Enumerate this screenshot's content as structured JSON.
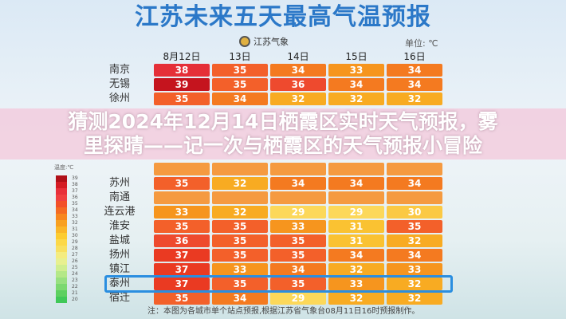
{
  "title": "江苏未来五天最高气温预报",
  "logo_text": "江苏气象",
  "unit": "单位: ℃",
  "columns": [
    "8月12日",
    "13日",
    "14日",
    "15日",
    "16日"
  ],
  "rows": [
    {
      "city": "南京",
      "values": [
        "38",
        "35",
        "34",
        "33",
        "34"
      ]
    },
    {
      "city": "无锡",
      "values": [
        "39",
        "35",
        "36",
        "34",
        "34"
      ]
    },
    {
      "city": "徐州",
      "values": [
        "35",
        "34",
        "32",
        "32",
        "32"
      ]
    },
    {
      "city": "",
      "values": [
        "",
        "",
        "",
        "",
        ""
      ]
    },
    {
      "city": "苏州",
      "values": [
        "35",
        "32",
        "34",
        "34",
        "34"
      ]
    },
    {
      "city": "南通",
      "values": [
        "",
        "",
        "",
        "",
        ""
      ]
    },
    {
      "city": "连云港",
      "values": [
        "33",
        "32",
        "29",
        "29",
        "30"
      ]
    },
    {
      "city": "淮安",
      "values": [
        "35",
        "35",
        "33",
        "31",
        "35"
      ]
    },
    {
      "city": "盐城",
      "values": [
        "36",
        "35",
        "35",
        "31",
        "32"
      ]
    },
    {
      "city": "扬州",
      "values": [
        "37",
        "35",
        "35",
        "34",
        "34"
      ]
    },
    {
      "city": "镇江",
      "values": [
        "37",
        "33",
        "34",
        "32",
        "33"
      ]
    },
    {
      "city": "泰州",
      "values": [
        "37",
        "35",
        "35",
        "33",
        "32"
      ]
    },
    {
      "city": "宿迁",
      "values": [
        "35",
        "34",
        "29",
        "32",
        "32"
      ]
    }
  ],
  "highlighted_city": "泰州",
  "legend": {
    "title": "温度:℃",
    "labels": [
      "39",
      "38",
      "37",
      "36",
      "35",
      "34",
      "33",
      "32",
      "31",
      "30",
      "29",
      "28",
      "27",
      "26",
      "25",
      "24",
      "23",
      "22",
      "21",
      "20"
    ]
  },
  "temp_colors": {
    "39": "#c5141e",
    "38": "#e52f38",
    "37": "#ea3a22",
    "36": "#ee4a2e",
    "35": "#f3602a",
    "34": "#f47a20",
    "33": "#f6951e",
    "32": "#f8ab22",
    "31": "#fac232",
    "30": "#fbc944",
    "29": "#fcd85a"
  },
  "legend_colors": [
    "#b01018",
    "#d41c24",
    "#e8303a",
    "#f04040",
    "#f25028",
    "#f46a22",
    "#f7861e",
    "#f8a020",
    "#fab628",
    "#fccc30",
    "#fcd848",
    "#f8e060",
    "#f4ec80",
    "#e8f090",
    "#d0ee90",
    "#b4e888",
    "#98e080",
    "#7cd870",
    "#5cd060",
    "#40c858"
  ],
  "footnote": "注：本图为各城市单个站点预报,根据江苏省气象台08月11日16时预报制作。",
  "overlay": {
    "line1": "猜测2024年12月14日栖霞区实时天气预报，雾",
    "line2": "里探晴——记一次与栖霞区的天气预报小冒险"
  }
}
